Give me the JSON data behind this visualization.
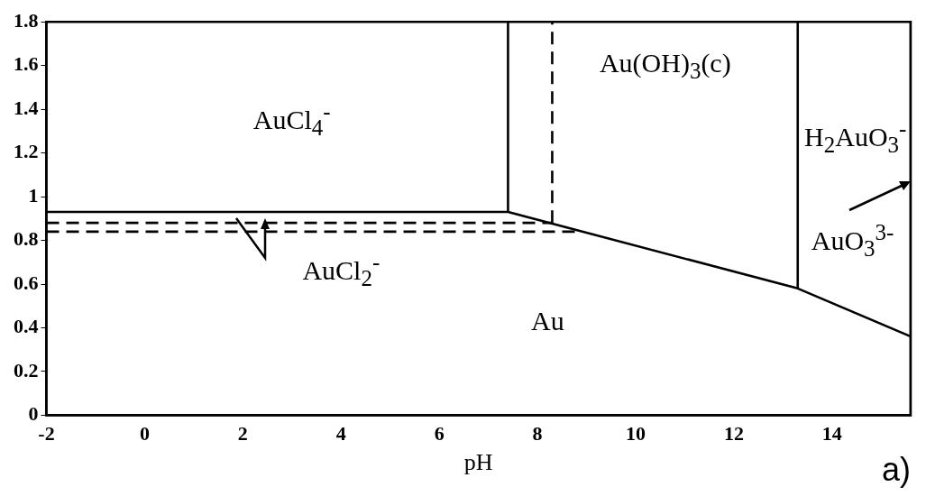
{
  "chart_data": {
    "type": "line",
    "xlabel": "pH",
    "xlim": [
      -2,
      15.6
    ],
    "ylim": [
      0,
      1.8
    ],
    "xticks": [
      -2,
      0,
      2,
      4,
      6,
      8,
      10,
      12,
      14
    ],
    "yticks": [
      0,
      0.2,
      0.4,
      0.6,
      0.8,
      1,
      1.2,
      1.4,
      1.6,
      1.8
    ],
    "grid": false,
    "legend": false,
    "marker": "none",
    "series": [
      {
        "color": "#000000",
        "x": [
          -2,
          7.4,
          13.3,
          15.6
        ],
        "values": [
          0.93,
          0.93,
          0.58,
          0.36
        ],
        "line_style": "solid"
      },
      {
        "color": "#000000",
        "x": [
          7.4,
          7.4
        ],
        "values": [
          0.93,
          1.8
        ],
        "line_style": "solid"
      },
      {
        "color": "#000000",
        "x": [
          13.3,
          13.3
        ],
        "values": [
          0.58,
          1.8
        ],
        "line_style": "solid"
      },
      {
        "color": "#000000",
        "x": [
          8.3,
          8.3
        ],
        "values": [
          0.88,
          1.8
        ],
        "line_style": "dashed"
      },
      {
        "color": "#000000",
        "x": [
          -2,
          8.3
        ],
        "values": [
          0.88,
          0.88
        ],
        "line_style": "dashed"
      },
      {
        "color": "#000000",
        "x": [
          -2,
          8.8
        ],
        "values": [
          0.84,
          0.84
        ],
        "line_style": "dashed"
      },
      {
        "color": "#000000",
        "x": [
          15.6,
          15.6
        ],
        "values": [
          0,
          1.8
        ],
        "line_style": "solid"
      }
    ],
    "annotations": [
      "AuCl$_{4}$$^{-}$",
      "Au(OH)$_{3}$(c)",
      "H$_{2}$AuO$_{3}$$^{-}$",
      "AuO$_{3}$$^{3-}$",
      "AuCl$_{2}$$^{-}$",
      "Au",
      "a)"
    ]
  }
}
